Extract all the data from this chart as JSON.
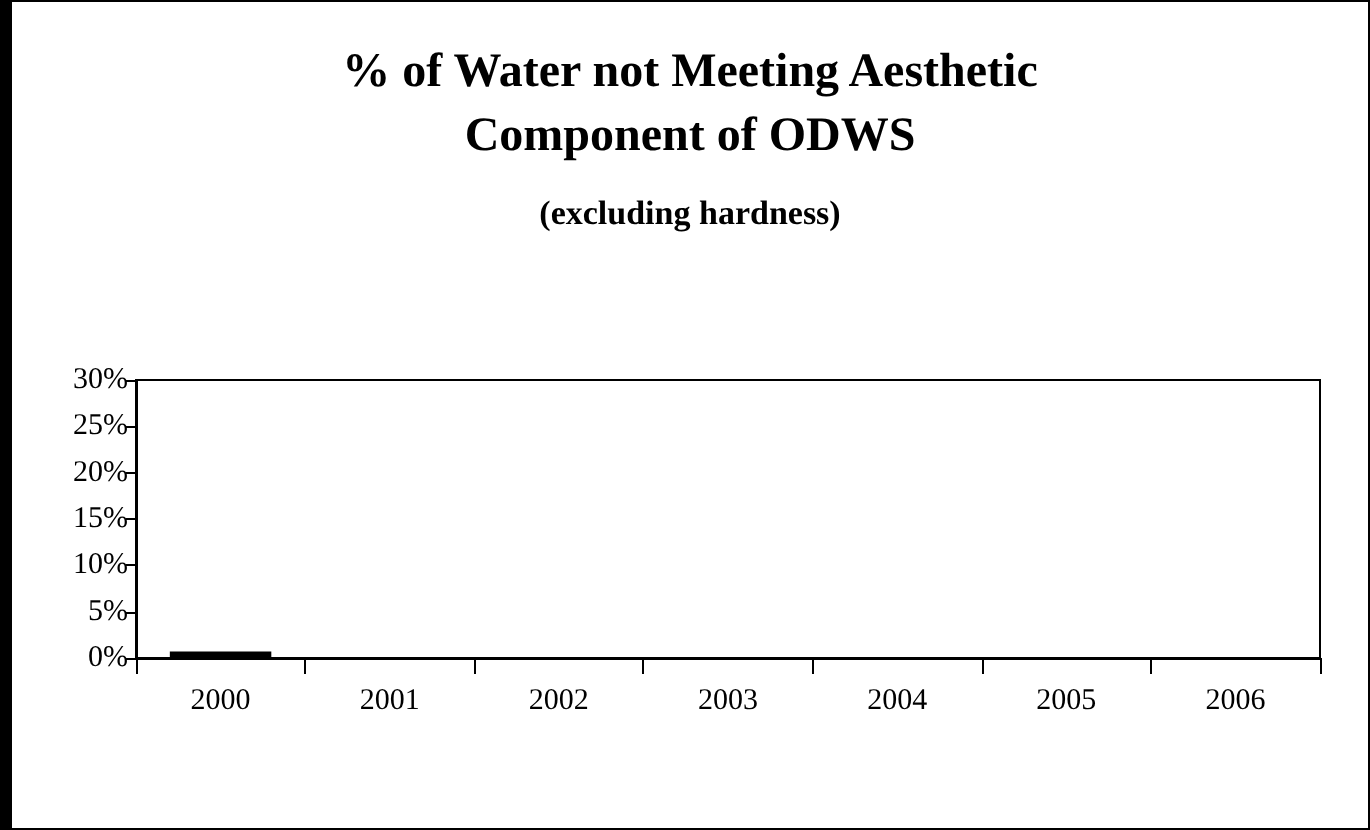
{
  "chart_data": {
    "type": "bar",
    "title": "% of Water not Meeting Aesthetic\nComponent of ODWS",
    "subtitle": "(excluding hardness)",
    "categories": [
      "2000",
      "2001",
      "2002",
      "2003",
      "2004",
      "2005",
      "2006"
    ],
    "values": [
      0.7,
      0,
      0,
      0,
      0,
      0,
      0
    ],
    "color": "#000000",
    "ylim": [
      0,
      30
    ],
    "yticks": [
      {
        "value": 0,
        "label": "0%"
      },
      {
        "value": 5,
        "label": "5%"
      },
      {
        "value": 10,
        "label": "10%"
      },
      {
        "value": 15,
        "label": "15%"
      },
      {
        "value": 20,
        "label": "20%"
      },
      {
        "value": 25,
        "label": "25%"
      },
      {
        "value": 30,
        "label": "30%"
      }
    ],
    "grid": false
  }
}
